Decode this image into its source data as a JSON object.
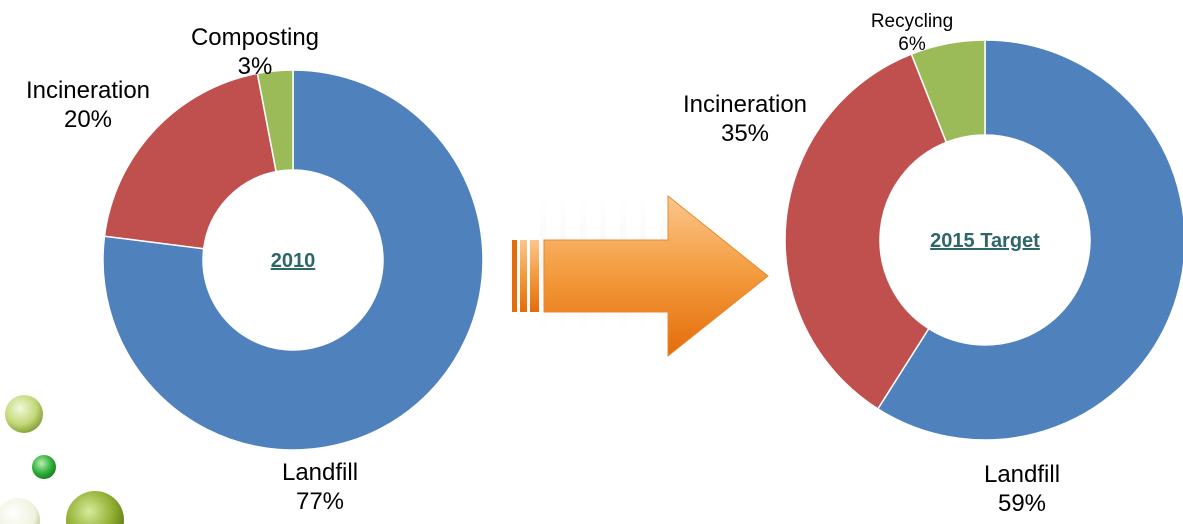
{
  "colors": {
    "landfill": "#4f81bd",
    "incineration": "#c0504d",
    "green": "#9bbb59",
    "center_text": "#2e6669",
    "arrow_light": "#f8b46a",
    "arrow_dark": "#e46c0a"
  },
  "chart_data": [
    {
      "type": "pie",
      "center_label": "2010",
      "slices": [
        {
          "label": "Landfill",
          "value": 77,
          "value_text": "77%",
          "color": "#4f81bd"
        },
        {
          "label": "Incineration",
          "value": 20,
          "value_text": "20%",
          "color": "#c0504d"
        },
        {
          "label": "Composting",
          "value": 3,
          "value_text": "3%",
          "color": "#9bbb59"
        }
      ]
    },
    {
      "type": "pie",
      "center_label": "2015 Target",
      "slices": [
        {
          "label": "Landfill",
          "value": 59,
          "value_text": "59%",
          "color": "#4f81bd"
        },
        {
          "label": "Incineration",
          "value": 35,
          "value_text": "35%",
          "color": "#c0504d"
        },
        {
          "label": "Recycling",
          "value": 6,
          "value_text": "6%",
          "color": "#9bbb59"
        }
      ]
    }
  ],
  "decorations": {
    "arrow_icon": "arrow-right-icon",
    "bubble_icon": "green-bubble-icon"
  }
}
